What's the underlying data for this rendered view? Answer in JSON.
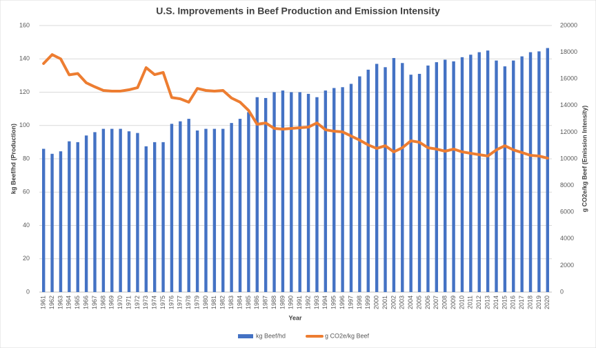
{
  "chart_data": {
    "type": "bar-line",
    "title": "U.S. Improvements in Beef Production and Emission Intensity",
    "x_label": "Year",
    "y_label": "kg Beef/hd (Production)",
    "y2_label": "g CO2e/kg Beef (Emission Intensity)",
    "categories": [
      "1961",
      "1962",
      "1963",
      "1964",
      "1965",
      "1966",
      "1967",
      "1968",
      "1969",
      "1970",
      "1971",
      "1972",
      "1973",
      "1974",
      "1975",
      "1976",
      "1977",
      "1978",
      "1979",
      "1980",
      "1981",
      "1982",
      "1983",
      "1984",
      "1985",
      "1986",
      "1987",
      "1988",
      "1989",
      "1990",
      "1991",
      "1992",
      "1993",
      "1994",
      "1995",
      "1996",
      "1997",
      "1998",
      "1999",
      "2000",
      "2001",
      "2002",
      "2003",
      "2004",
      "2005",
      "2006",
      "2007",
      "2008",
      "2009",
      "2010",
      "2011",
      "2012",
      "2013",
      "2014",
      "2015",
      "2016",
      "2017",
      "2018",
      "2019",
      "2020"
    ],
    "series": [
      {
        "name": "kg Beef/hd",
        "type": "bar",
        "color": "#4472c4",
        "values": [
          86,
          83,
          84.5,
          90.5,
          90,
          94,
          96,
          98,
          98,
          98,
          96.5,
          95.5,
          87.5,
          90,
          90,
          101,
          102.5,
          104,
          97,
          98,
          98,
          98,
          101.5,
          104,
          108,
          117,
          116.5,
          120,
          121,
          120,
          120,
          119,
          117,
          121,
          122.5,
          123,
          125,
          129.5,
          133.5,
          137,
          135,
          140.5,
          137.5,
          130.5,
          131,
          136,
          138,
          139.5,
          138.5,
          141,
          142.5,
          144,
          145,
          139,
          135.5,
          139,
          141.5,
          144,
          144.5,
          146.5
        ]
      },
      {
        "name": "g CO2e/kg Beef",
        "type": "line",
        "axis": "y2",
        "color": "#ed7d31",
        "values": [
          17150,
          17820,
          17500,
          16300,
          16400,
          15700,
          15400,
          15130,
          15080,
          15080,
          15180,
          15340,
          16840,
          16320,
          16480,
          14600,
          14500,
          14250,
          15280,
          15130,
          15080,
          15130,
          14560,
          14250,
          13630,
          12590,
          12690,
          12280,
          12230,
          12280,
          12330,
          12380,
          12690,
          12180,
          12070,
          12020,
          11710,
          11400,
          11040,
          10780,
          10980,
          10520,
          10830,
          11350,
          11240,
          10830,
          10730,
          10570,
          10730,
          10520,
          10410,
          10310,
          10210,
          10670,
          10980,
          10670,
          10470,
          10260,
          10210,
          10050
        ]
      }
    ],
    "ylim": [
      0,
      160
    ],
    "yticks": [
      0,
      20,
      40,
      60,
      80,
      100,
      120,
      140,
      160
    ],
    "y2lim": [
      0,
      20000
    ],
    "y2ticks": [
      0,
      2000,
      4000,
      6000,
      8000,
      10000,
      12000,
      14000,
      16000,
      18000,
      20000
    ],
    "grid": true,
    "legend": "bottom"
  }
}
